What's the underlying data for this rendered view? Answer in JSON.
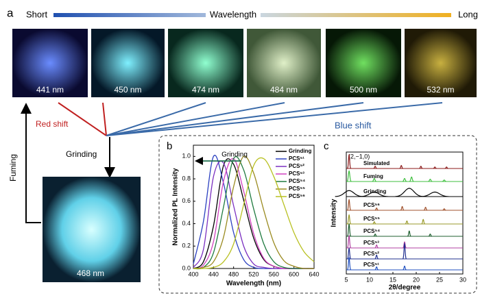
{
  "panel_a": {
    "label": "a",
    "short": "Short",
    "wavelength": "Wavelength",
    "long": "Long",
    "photos": [
      "441 nm",
      "450 nm",
      "474 nm",
      "484 nm",
      "500 nm",
      "532 nm"
    ],
    "red_shift": "Red shift",
    "blue_shift": "Blue shift",
    "grinding": "Grinding",
    "fuming": "Fuming",
    "ground_photo": "468 nm"
  },
  "chart_data": [
    {
      "type": "line",
      "label": "b",
      "x_label": "Wavelength (nm)",
      "y_label": "Normalized PL Intensity",
      "annotation": "Grinding",
      "x": [
        400,
        420,
        440,
        460,
        480,
        500,
        520,
        540,
        560,
        580,
        600,
        620,
        640
      ],
      "xlim": [
        400,
        640
      ],
      "xticks": [
        400,
        440,
        480,
        520,
        560,
        600,
        640
      ],
      "ylim": [
        0,
        1.1
      ],
      "yticks": [
        {
          "value": 0,
          "label": "0.0"
        },
        0.2,
        0.4,
        0.6,
        0.8,
        {
          "value": 1,
          "label": "1.0"
        }
      ],
      "series": [
        {
          "name": "Grinding",
          "color": "#000000",
          "values": [
            0,
            0.06,
            0.38,
            0.92,
            0.93,
            0.61,
            0.27,
            0.08,
            0.02,
            0,
            0,
            0,
            0
          ]
        },
        {
          "name": "PCS⁵¹",
          "color": "#2a3fc0",
          "values": [
            0.04,
            0.42,
            1,
            0.76,
            0.32,
            0.08,
            0.01,
            0,
            0,
            0,
            0,
            0,
            0
          ]
        },
        {
          "name": "PCS⁵²",
          "color": "#7a2fc0",
          "values": [
            0.01,
            0.17,
            0.82,
            0.94,
            0.56,
            0.2,
            0.04,
            0.01,
            0,
            0,
            0,
            0,
            0
          ]
        },
        {
          "name": "PCS⁵³",
          "color": "#d040c0",
          "values": [
            0,
            0.03,
            0.24,
            0.78,
            0.98,
            0.69,
            0.31,
            0.09,
            0.02,
            0,
            0,
            0,
            0
          ]
        },
        {
          "name": "PCS⁵⁴",
          "color": "#1f7a3f",
          "values": [
            0,
            0.01,
            0.14,
            0.55,
            0.98,
            0.88,
            0.53,
            0.22,
            0.06,
            0.01,
            0,
            0,
            0
          ]
        },
        {
          "name": "PCS⁵⁵",
          "color": "#9a8a1f",
          "values": [
            0,
            0.01,
            0.06,
            0.28,
            0.73,
            1,
            0.85,
            0.52,
            0.23,
            0.07,
            0.02,
            0,
            0
          ]
        },
        {
          "name": "PCS⁵⁶",
          "color": "#b8c020",
          "values": [
            0,
            0,
            0.01,
            0.06,
            0.22,
            0.57,
            0.92,
            0.98,
            0.82,
            0.57,
            0.32,
            0.15,
            0.06
          ]
        }
      ]
    },
    {
      "type": "xrd",
      "label": "c",
      "x_label": "2θ/degree",
      "y_label": "Intensity",
      "annotation": "(2,−1,0)",
      "xlim": [
        5,
        30
      ],
      "xticks": [
        5,
        10,
        15,
        20,
        25,
        30
      ],
      "series": [
        {
          "name": "Simulated",
          "color": "#8b1a1a",
          "peak_width": 0.12,
          "peaks_x": [
            5.6,
            11.2,
            16.8,
            21,
            24,
            26.5
          ],
          "peaks_y": [
            0.9,
            0.15,
            0.2,
            0.15,
            0.1,
            0.1
          ]
        },
        {
          "name": "Fuming",
          "color": "#3fbf3f",
          "peak_width": 0.15,
          "peaks_x": [
            5.6,
            11,
            17.5,
            19,
            23,
            26
          ],
          "peaks_y": [
            0.7,
            0.2,
            0.2,
            0.3,
            0.15,
            0.1
          ]
        },
        {
          "name": "Grinding",
          "color": "#000000",
          "peak_width": 1.0,
          "peaks_x": [
            5.6,
            11,
            18.5,
            24
          ],
          "peaks_y": [
            0.4,
            0.3,
            0.55,
            0.3
          ]
        },
        {
          "name": "PCS⁵⁶",
          "color": "#a0522d",
          "peak_width": 0.12,
          "peaks_x": [
            5.6,
            11.5,
            17,
            22,
            26
          ],
          "peaks_y": [
            0.7,
            0.15,
            0.25,
            0.2,
            0.1
          ]
        },
        {
          "name": "PCS⁵⁵",
          "color": "#9a9a2a",
          "peak_width": 0.12,
          "peaks_x": [
            5.6,
            11,
            18,
            21.5
          ],
          "peaks_y": [
            0.6,
            0.15,
            0.2,
            0.3
          ]
        },
        {
          "name": "PCS⁵⁴",
          "color": "#1f5f2f",
          "peak_width": 0.12,
          "peaks_x": [
            5.6,
            11.2,
            18.5,
            23
          ],
          "peaks_y": [
            0.8,
            0.15,
            0.35,
            0.15
          ]
        },
        {
          "name": "PCS⁵³",
          "color": "#b03fa0",
          "peak_width": 0.12,
          "peaks_x": [
            5.6,
            11.5,
            17.5
          ],
          "peaks_y": [
            0.8,
            0.2,
            0.4
          ]
        },
        {
          "name": "PCS⁵²",
          "color": "#1f2f8f",
          "peak_width": 0.12,
          "peaks_x": [
            5.6,
            11.5,
            17.5
          ],
          "peaks_y": [
            0.7,
            0.25,
            1.0
          ]
        },
        {
          "name": "PCS⁵¹",
          "color": "#1f4fbf",
          "peak_width": 0.12,
          "peaks_x": [
            5.6,
            11.5,
            17.5
          ],
          "peaks_y": [
            0.8,
            0.2,
            0.25
          ]
        }
      ]
    }
  ]
}
